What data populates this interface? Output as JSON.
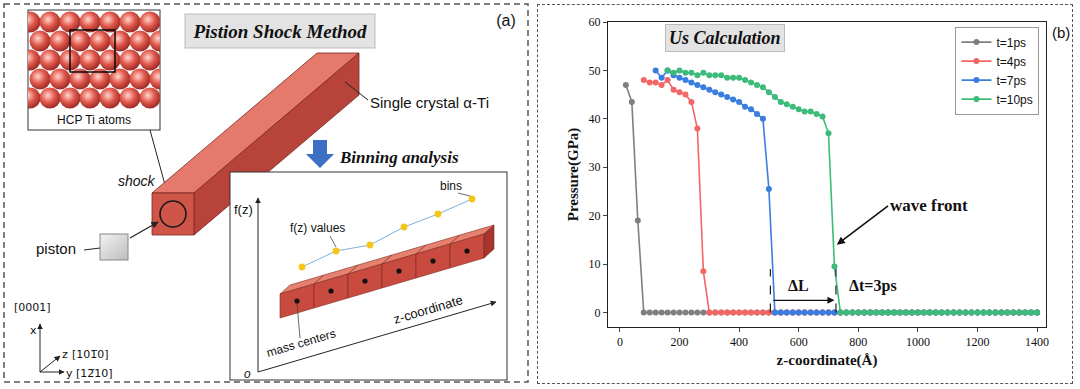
{
  "panel_a": {
    "label": "(a)",
    "title": "Pistion Shock Method",
    "inset_label": "HCP Ti atoms",
    "sample_label": "Single crystal α-Ti",
    "shock_label": "shock",
    "piston_label": "piston",
    "arrow_label": "Binning analysis",
    "binning": {
      "y_axis": "f(z)",
      "values_label": "f(z) values",
      "bins_label": "bins",
      "centers_label": "mass centers",
      "x_axis": "z-coordinate",
      "origin": "o"
    },
    "axes": {
      "x": "x",
      "x_dir": "[0001]",
      "z": "z",
      "z_dir": "[101̅0]",
      "y": "y",
      "y_dir": "[12̅10]"
    }
  },
  "chart_data": {
    "type": "line",
    "title": "Us Calculation",
    "x_label": "z-coordinate(Å)",
    "y_label": "Pressure(GPa)",
    "x": [
      0,
      20,
      40,
      60,
      80,
      100,
      120,
      140,
      160,
      180,
      200,
      220,
      240,
      260,
      280,
      300,
      320,
      340,
      360,
      380,
      400,
      420,
      440,
      460,
      480,
      500,
      520,
      540,
      560,
      580,
      600,
      620,
      640,
      660,
      680,
      700,
      720,
      740,
      760,
      780,
      800,
      820,
      840,
      860,
      880,
      900,
      920,
      940,
      960,
      980,
      1000,
      1020,
      1040,
      1060,
      1080,
      1100,
      1120,
      1140,
      1160,
      1180,
      1200,
      1220,
      1240,
      1260,
      1280,
      1300,
      1320,
      1340,
      1360,
      1380,
      1400
    ],
    "series": [
      {
        "name": "t=1ps",
        "color": "#7f7f7f",
        "values": [
          null,
          47,
          43.5,
          19,
          0,
          0,
          0,
          0,
          0,
          0,
          0,
          0,
          0,
          0,
          0,
          0,
          0,
          0,
          0,
          0,
          0,
          0,
          0,
          0,
          0,
          0,
          0,
          0,
          0,
          0,
          0,
          0,
          0,
          0,
          0,
          0,
          0,
          0,
          0,
          0,
          0,
          0,
          0,
          0,
          0,
          0,
          0,
          0,
          0,
          0,
          0,
          0,
          0,
          0,
          0,
          0,
          0,
          0,
          0,
          0,
          0,
          0,
          0,
          0,
          0,
          0,
          0,
          0,
          0,
          0,
          0
        ]
      },
      {
        "name": "t=4ps",
        "color": "#f26666",
        "values": [
          null,
          null,
          null,
          null,
          48,
          47.5,
          47.5,
          47,
          48,
          46,
          45.5,
          45,
          43.5,
          38,
          8.5,
          0,
          0,
          0,
          0,
          0,
          0,
          0,
          0,
          0,
          0,
          0,
          0,
          0,
          0,
          0,
          0,
          0,
          0,
          0,
          0,
          0,
          0,
          0,
          0,
          0,
          0,
          0,
          0,
          0,
          0,
          0,
          0,
          0,
          0,
          0,
          0,
          0,
          0,
          0,
          0,
          0,
          0,
          0,
          0,
          0,
          0,
          0,
          0,
          0,
          0,
          0,
          0,
          0,
          0,
          0,
          0
        ]
      },
      {
        "name": "t=7ps",
        "color": "#3a7de0",
        "values": [
          null,
          null,
          null,
          null,
          null,
          null,
          50,
          48.5,
          50,
          49,
          48.5,
          48,
          47.5,
          47,
          46.5,
          46,
          45.5,
          45,
          44.5,
          44,
          43.5,
          42.5,
          42,
          41,
          40,
          25.5,
          0,
          0,
          0,
          0,
          0,
          0,
          0,
          0,
          0,
          0,
          0,
          0,
          0,
          0,
          0,
          0,
          0,
          0,
          0,
          0,
          0,
          0,
          0,
          0,
          0,
          0,
          0,
          0,
          0,
          0,
          0,
          0,
          0,
          0,
          0,
          0,
          0,
          0,
          0,
          0,
          0,
          0,
          0,
          0,
          0
        ]
      },
      {
        "name": "t=10ps",
        "color": "#3dbb7a",
        "values": [
          null,
          null,
          null,
          null,
          null,
          null,
          null,
          null,
          50,
          49.5,
          50,
          49.5,
          49.5,
          49,
          49.5,
          49,
          49,
          49,
          48.5,
          48.5,
          48.5,
          48,
          47.5,
          47,
          46.5,
          45.5,
          44.5,
          43.5,
          43,
          42.5,
          42,
          41.5,
          41.5,
          41,
          40.5,
          37,
          9.5,
          0,
          0,
          0,
          0,
          0,
          0,
          0,
          0,
          0,
          0,
          0,
          0,
          0,
          0,
          0,
          0,
          0,
          0,
          0,
          0,
          0,
          0,
          0,
          0,
          0,
          0,
          0,
          0,
          0,
          0,
          0,
          0,
          0,
          0
        ]
      }
    ],
    "marker": "circle",
    "xlim": [
      -40,
      1430
    ],
    "ylim": [
      -3,
      60
    ],
    "xticks": [
      0,
      200,
      400,
      600,
      800,
      1000,
      1200,
      1400
    ],
    "yticks": [
      0,
      10,
      20,
      30,
      40,
      50,
      60
    ],
    "grid": false,
    "legend": "upper right",
    "annotations": [
      "wave front",
      "ΔL",
      "Δt=3ps",
      "(b)"
    ]
  }
}
